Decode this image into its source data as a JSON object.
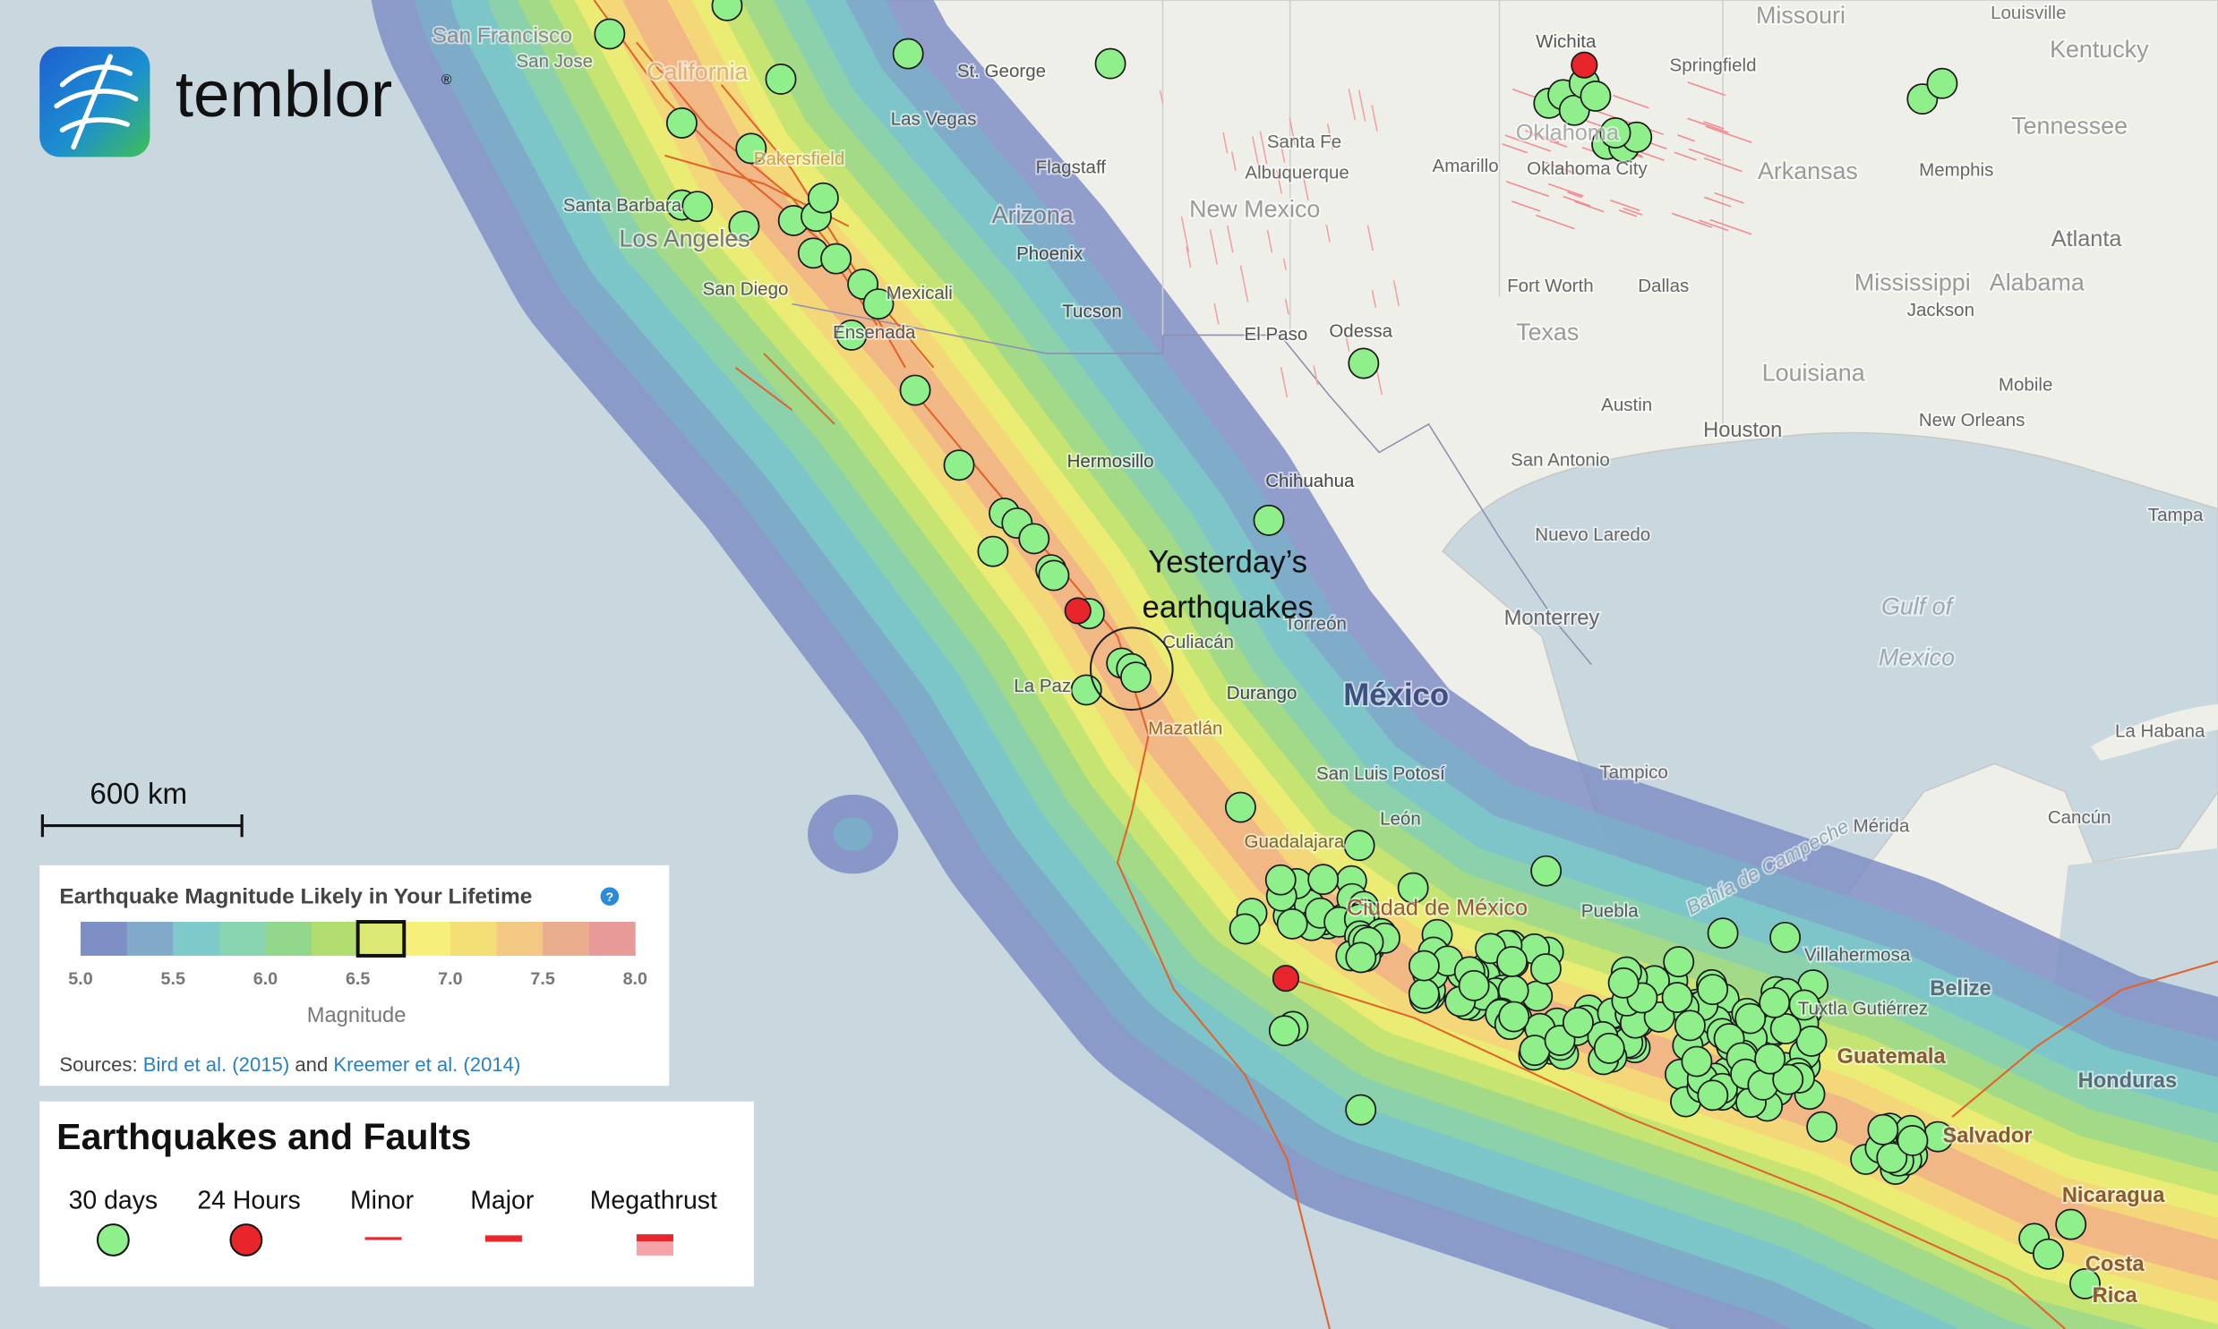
{
  "header": {
    "logo_text": "temblor",
    "registered": "®"
  },
  "scale_bar": {
    "label": "600 km"
  },
  "annotation": {
    "lines": [
      "Yesterday’s",
      "earthquakes"
    ]
  },
  "places": [
    "San Francisco",
    "San Jose",
    "California",
    "St. George",
    "Las Vegas",
    "Bakersfield",
    "Flagstaff",
    "Santa Barbara",
    "Los Angeles",
    "Arizona",
    "Phoenix",
    "Mexicali",
    "San Diego",
    "Tucson",
    "Ensenada",
    "El Paso",
    "Odessa",
    "Hermosillo",
    "Chihuahua",
    "Culiacán",
    "Torreón",
    "Durango",
    "La Paz",
    "México",
    "Mazatlán",
    "Monterrey",
    "San Luis Potosí",
    "Tampico",
    "León",
    "Guadalajara",
    "Ciudad de México",
    "Puebla",
    "Villahermosa",
    "Tuxtla Gutiérrez",
    "Belize",
    "Guatemala",
    "Honduras",
    "Salvador",
    "Nicaragua",
    "Costa",
    "Rica",
    "Mérida",
    "Cancún",
    "La Habana",
    "Gulf of",
    "Mexico",
    "Bahía de Campeche",
    "Missouri",
    "Louisville",
    "Kentucky",
    "Wichita",
    "Springfield",
    "Tennessee",
    "Santa Fe",
    "Albuquerque",
    "Amarillo",
    "Oklahoma City",
    "Arkansas",
    "Memphis",
    "New Mexico",
    "Atlanta",
    "Mississippi",
    "Alabama",
    "Jackson",
    "Fort Worth",
    "Dallas",
    "Texas",
    "Louisiana",
    "Mobile",
    "Austin",
    "Houston",
    "New Orleans",
    "San Antonio",
    "Tampa",
    "Nuevo Laredo",
    "Oklahoma"
  ],
  "hazard_legend": {
    "title": "Earthquake Magnitude Likely in Your Lifetime",
    "help": "?",
    "ticks": [
      {
        "value": 5,
        "label": "5.0"
      },
      {
        "value": 5.5,
        "label": "5.5"
      },
      {
        "value": 6,
        "label": "6.0"
      },
      {
        "value": 6.5,
        "label": "6.5"
      },
      {
        "value": 7,
        "label": "7.0"
      },
      {
        "value": 7.5,
        "label": "7.5"
      },
      {
        "value": 8,
        "label": "8.0"
      }
    ],
    "axis_label": "Magnitude",
    "sources": {
      "prefix": "Sources:",
      "ref1": "Bird et al. (2015)",
      "conj": "and",
      "ref2": "Kreemer et al. (2014)"
    }
  },
  "quake_legend": {
    "title": "Earthquakes and Faults",
    "items": [
      "30 days",
      "24 Hours",
      "Minor",
      "Major",
      "Megathrust"
    ]
  }
}
